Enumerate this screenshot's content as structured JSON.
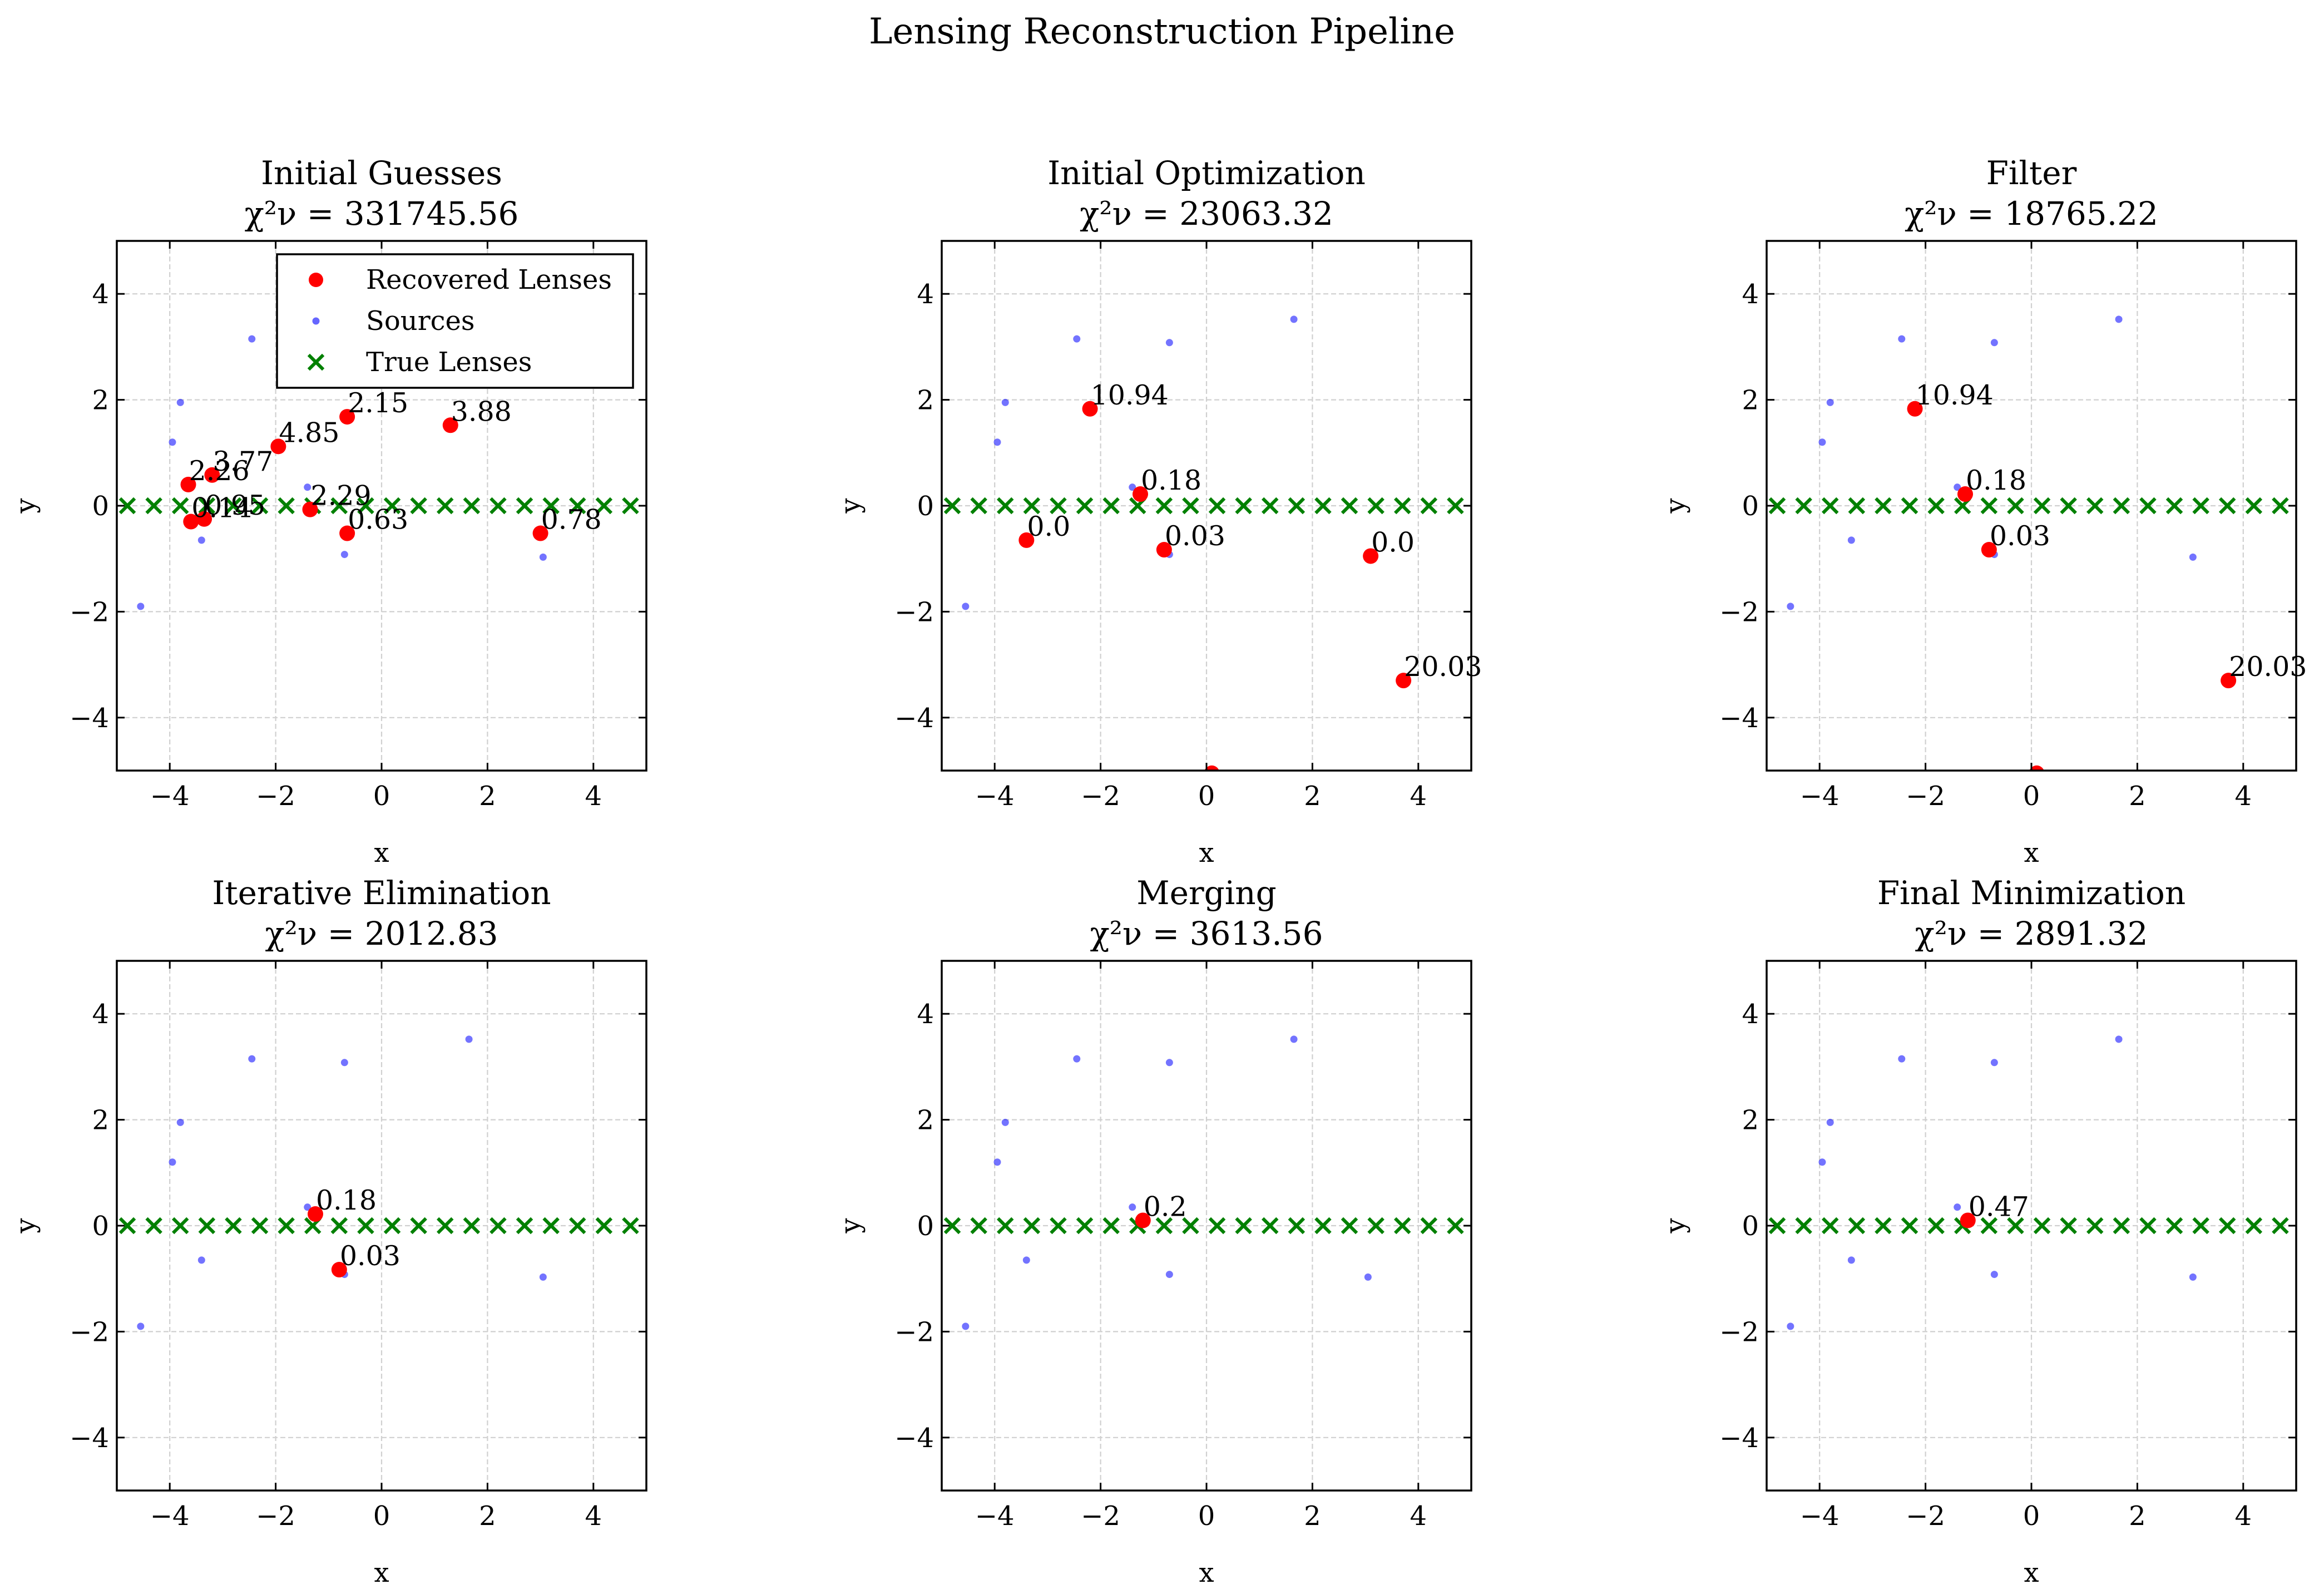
{
  "figure": {
    "title": "Lensing Reconstruction Pipeline"
  },
  "legend": {
    "items": [
      {
        "label": "Recovered Lenses",
        "marker": "circle",
        "color": "#ff0000"
      },
      {
        "label": "Sources",
        "marker": "small-circle",
        "color": "#0000ff"
      },
      {
        "label": "True Lenses",
        "marker": "x",
        "color": "#008000"
      }
    ]
  },
  "chart_data": [
    {
      "type": "scatter",
      "title": "Initial Guesses",
      "chi2_label": "χ²ν = 331745.56",
      "xlabel": "x",
      "ylabel": "y",
      "xlim": [
        -5,
        5
      ],
      "ylim": [
        -5,
        5
      ],
      "xticks": [
        -4,
        -2,
        0,
        2,
        4
      ],
      "yticks": [
        -4,
        -2,
        0,
        2,
        4
      ],
      "grid": true,
      "legend_position": "top-right",
      "series": [
        {
          "name": "Sources",
          "points": [
            [
              -4.55,
              -1.9
            ],
            [
              -3.95,
              1.2
            ],
            [
              -3.8,
              1.95
            ],
            [
              -3.4,
              -0.65
            ],
            [
              -2.45,
              3.15
            ],
            [
              -1.4,
              0.35
            ],
            [
              -0.7,
              -0.92
            ],
            [
              -0.7,
              3.08
            ],
            [
              1.65,
              3.52
            ],
            [
              3.05,
              -0.97
            ]
          ]
        },
        {
          "name": "True Lenses",
          "points": [
            [
              -4.8,
              0
            ],
            [
              -4.3,
              0
            ],
            [
              -3.8,
              0
            ],
            [
              -3.3,
              0
            ],
            [
              -2.8,
              0
            ],
            [
              -2.3,
              0
            ],
            [
              -1.8,
              0
            ],
            [
              -1.3,
              0
            ],
            [
              -0.8,
              0
            ],
            [
              -0.3,
              0
            ],
            [
              0.2,
              0
            ],
            [
              0.7,
              0
            ],
            [
              1.2,
              0
            ],
            [
              1.7,
              0
            ],
            [
              2.2,
              0
            ],
            [
              2.7,
              0
            ],
            [
              3.2,
              0
            ],
            [
              3.7,
              0
            ],
            [
              4.2,
              0
            ],
            [
              4.7,
              0
            ]
          ]
        },
        {
          "name": "Recovered Lenses",
          "points": [
            [
              -3.65,
              0.4,
              "2.26"
            ],
            [
              -3.2,
              0.58,
              "3.77"
            ],
            [
              -3.6,
              -0.3,
              "0.14"
            ],
            [
              -3.35,
              -0.25,
              "0.95"
            ],
            [
              -1.95,
              1.12,
              "4.85"
            ],
            [
              -1.35,
              -0.07,
              "2.29"
            ],
            [
              -0.65,
              1.68,
              "2.15"
            ],
            [
              -0.65,
              -0.52,
              "0.63"
            ],
            [
              1.3,
              1.52,
              "3.88"
            ],
            [
              3.0,
              -0.52,
              "0.78"
            ]
          ]
        }
      ]
    },
    {
      "type": "scatter",
      "title": "Initial Optimization",
      "chi2_label": "χ²ν = 23063.32",
      "xlabel": "x",
      "ylabel": "y",
      "xlim": [
        -5,
        5
      ],
      "ylim": [
        -5,
        5
      ],
      "xticks": [
        -4,
        -2,
        0,
        2,
        4
      ],
      "yticks": [
        -4,
        -2,
        0,
        2,
        4
      ],
      "grid": true,
      "series": [
        {
          "name": "Sources",
          "points": [
            [
              -4.55,
              -1.9
            ],
            [
              -3.95,
              1.2
            ],
            [
              -3.8,
              1.95
            ],
            [
              -3.4,
              -0.65
            ],
            [
              -2.45,
              3.15
            ],
            [
              -1.4,
              0.35
            ],
            [
              -0.7,
              -0.92
            ],
            [
              -0.7,
              3.08
            ],
            [
              1.65,
              3.52
            ],
            [
              3.05,
              -0.97
            ]
          ]
        },
        {
          "name": "True Lenses",
          "points": [
            [
              -4.8,
              0
            ],
            [
              -4.3,
              0
            ],
            [
              -3.8,
              0
            ],
            [
              -3.3,
              0
            ],
            [
              -2.8,
              0
            ],
            [
              -2.3,
              0
            ],
            [
              -1.8,
              0
            ],
            [
              -1.3,
              0
            ],
            [
              -0.8,
              0
            ],
            [
              -0.3,
              0
            ],
            [
              0.2,
              0
            ],
            [
              0.7,
              0
            ],
            [
              1.2,
              0
            ],
            [
              1.7,
              0
            ],
            [
              2.2,
              0
            ],
            [
              2.7,
              0
            ],
            [
              3.2,
              0
            ],
            [
              3.7,
              0
            ],
            [
              4.2,
              0
            ],
            [
              4.7,
              0
            ]
          ]
        },
        {
          "name": "Recovered Lenses",
          "points": [
            [
              -3.4,
              -0.65,
              "0.0"
            ],
            [
              -2.2,
              1.83,
              "10.94"
            ],
            [
              -1.25,
              0.22,
              "0.18"
            ],
            [
              -0.8,
              -0.83,
              "0.03"
            ],
            [
              3.1,
              -0.95,
              "0.0"
            ],
            [
              3.72,
              -3.3,
              "20.03"
            ],
            [
              0.1,
              -5.05,
              ""
            ]
          ]
        }
      ]
    },
    {
      "type": "scatter",
      "title": "Filter",
      "chi2_label": "χ²ν = 18765.22",
      "xlabel": "x",
      "ylabel": "y",
      "xlim": [
        -5,
        5
      ],
      "ylim": [
        -5,
        5
      ],
      "xticks": [
        -4,
        -2,
        0,
        2,
        4
      ],
      "yticks": [
        -4,
        -2,
        0,
        2,
        4
      ],
      "grid": true,
      "series": [
        {
          "name": "Sources",
          "points": [
            [
              -4.55,
              -1.9
            ],
            [
              -3.95,
              1.2
            ],
            [
              -3.8,
              1.95
            ],
            [
              -3.4,
              -0.65
            ],
            [
              -2.45,
              3.15
            ],
            [
              -1.4,
              0.35
            ],
            [
              -0.7,
              -0.92
            ],
            [
              -0.7,
              3.08
            ],
            [
              1.65,
              3.52
            ],
            [
              3.05,
              -0.97
            ]
          ]
        },
        {
          "name": "True Lenses",
          "points": [
            [
              -4.8,
              0
            ],
            [
              -4.3,
              0
            ],
            [
              -3.8,
              0
            ],
            [
              -3.3,
              0
            ],
            [
              -2.8,
              0
            ],
            [
              -2.3,
              0
            ],
            [
              -1.8,
              0
            ],
            [
              -1.3,
              0
            ],
            [
              -0.8,
              0
            ],
            [
              -0.3,
              0
            ],
            [
              0.2,
              0
            ],
            [
              0.7,
              0
            ],
            [
              1.2,
              0
            ],
            [
              1.7,
              0
            ],
            [
              2.2,
              0
            ],
            [
              2.7,
              0
            ],
            [
              3.2,
              0
            ],
            [
              3.7,
              0
            ],
            [
              4.2,
              0
            ],
            [
              4.7,
              0
            ]
          ]
        },
        {
          "name": "Recovered Lenses",
          "points": [
            [
              -2.2,
              1.83,
              "10.94"
            ],
            [
              -1.25,
              0.22,
              "0.18"
            ],
            [
              -0.8,
              -0.83,
              "0.03"
            ],
            [
              3.72,
              -3.3,
              "20.03"
            ],
            [
              0.1,
              -5.05,
              ""
            ]
          ]
        }
      ]
    },
    {
      "type": "scatter",
      "title": "Iterative Elimination",
      "chi2_label": "χ²ν = 2012.83",
      "xlabel": "x",
      "ylabel": "y",
      "xlim": [
        -5,
        5
      ],
      "ylim": [
        -5,
        5
      ],
      "xticks": [
        -4,
        -2,
        0,
        2,
        4
      ],
      "yticks": [
        -4,
        -2,
        0,
        2,
        4
      ],
      "grid": true,
      "series": [
        {
          "name": "Sources",
          "points": [
            [
              -4.55,
              -1.9
            ],
            [
              -3.95,
              1.2
            ],
            [
              -3.8,
              1.95
            ],
            [
              -3.4,
              -0.65
            ],
            [
              -2.45,
              3.15
            ],
            [
              -1.4,
              0.35
            ],
            [
              -0.7,
              -0.92
            ],
            [
              -0.7,
              3.08
            ],
            [
              1.65,
              3.52
            ],
            [
              3.05,
              -0.97
            ]
          ]
        },
        {
          "name": "True Lenses",
          "points": [
            [
              -4.8,
              0
            ],
            [
              -4.3,
              0
            ],
            [
              -3.8,
              0
            ],
            [
              -3.3,
              0
            ],
            [
              -2.8,
              0
            ],
            [
              -2.3,
              0
            ],
            [
              -1.8,
              0
            ],
            [
              -1.3,
              0
            ],
            [
              -0.8,
              0
            ],
            [
              -0.3,
              0
            ],
            [
              0.2,
              0
            ],
            [
              0.7,
              0
            ],
            [
              1.2,
              0
            ],
            [
              1.7,
              0
            ],
            [
              2.2,
              0
            ],
            [
              2.7,
              0
            ],
            [
              3.2,
              0
            ],
            [
              3.7,
              0
            ],
            [
              4.2,
              0
            ],
            [
              4.7,
              0
            ]
          ]
        },
        {
          "name": "Recovered Lenses",
          "points": [
            [
              -1.25,
              0.22,
              "0.18"
            ],
            [
              -0.8,
              -0.83,
              "0.03"
            ]
          ]
        }
      ]
    },
    {
      "type": "scatter",
      "title": "Merging",
      "chi2_label": "χ²ν = 3613.56",
      "xlabel": "x",
      "ylabel": "y",
      "xlim": [
        -5,
        5
      ],
      "ylim": [
        -5,
        5
      ],
      "xticks": [
        -4,
        -2,
        0,
        2,
        4
      ],
      "yticks": [
        -4,
        -2,
        0,
        2,
        4
      ],
      "grid": true,
      "series": [
        {
          "name": "Sources",
          "points": [
            [
              -4.55,
              -1.9
            ],
            [
              -3.95,
              1.2
            ],
            [
              -3.8,
              1.95
            ],
            [
              -3.4,
              -0.65
            ],
            [
              -2.45,
              3.15
            ],
            [
              -1.4,
              0.35
            ],
            [
              -0.7,
              -0.92
            ],
            [
              -0.7,
              3.08
            ],
            [
              1.65,
              3.52
            ],
            [
              3.05,
              -0.97
            ]
          ]
        },
        {
          "name": "True Lenses",
          "points": [
            [
              -4.8,
              0
            ],
            [
              -4.3,
              0
            ],
            [
              -3.8,
              0
            ],
            [
              -3.3,
              0
            ],
            [
              -2.8,
              0
            ],
            [
              -2.3,
              0
            ],
            [
              -1.8,
              0
            ],
            [
              -1.3,
              0
            ],
            [
              -0.8,
              0
            ],
            [
              -0.3,
              0
            ],
            [
              0.2,
              0
            ],
            [
              0.7,
              0
            ],
            [
              1.2,
              0
            ],
            [
              1.7,
              0
            ],
            [
              2.2,
              0
            ],
            [
              2.7,
              0
            ],
            [
              3.2,
              0
            ],
            [
              3.7,
              0
            ],
            [
              4.2,
              0
            ],
            [
              4.7,
              0
            ]
          ]
        },
        {
          "name": "Recovered Lenses",
          "points": [
            [
              -1.2,
              0.1,
              "0.2"
            ]
          ]
        }
      ]
    },
    {
      "type": "scatter",
      "title": "Final Minimization",
      "chi2_label": "χ²ν = 2891.32",
      "xlabel": "x",
      "ylabel": "y",
      "xlim": [
        -5,
        5
      ],
      "ylim": [
        -5,
        5
      ],
      "xticks": [
        -4,
        -2,
        0,
        2,
        4
      ],
      "yticks": [
        -4,
        -2,
        0,
        2,
        4
      ],
      "grid": true,
      "series": [
        {
          "name": "Sources",
          "points": [
            [
              -4.55,
              -1.9
            ],
            [
              -3.95,
              1.2
            ],
            [
              -3.8,
              1.95
            ],
            [
              -3.4,
              -0.65
            ],
            [
              -2.45,
              3.15
            ],
            [
              -1.4,
              0.35
            ],
            [
              -0.7,
              -0.92
            ],
            [
              -0.7,
              3.08
            ],
            [
              1.65,
              3.52
            ],
            [
              3.05,
              -0.97
            ]
          ]
        },
        {
          "name": "True Lenses",
          "points": [
            [
              -4.8,
              0
            ],
            [
              -4.3,
              0
            ],
            [
              -3.8,
              0
            ],
            [
              -3.3,
              0
            ],
            [
              -2.8,
              0
            ],
            [
              -2.3,
              0
            ],
            [
              -1.8,
              0
            ],
            [
              -1.3,
              0
            ],
            [
              -0.8,
              0
            ],
            [
              -0.3,
              0
            ],
            [
              0.2,
              0
            ],
            [
              0.7,
              0
            ],
            [
              1.2,
              0
            ],
            [
              1.7,
              0
            ],
            [
              2.2,
              0
            ],
            [
              2.7,
              0
            ],
            [
              3.2,
              0
            ],
            [
              3.7,
              0
            ],
            [
              4.2,
              0
            ],
            [
              4.7,
              0
            ]
          ]
        },
        {
          "name": "Recovered Lenses",
          "points": [
            [
              -1.2,
              0.1,
              "0.47"
            ]
          ]
        }
      ]
    }
  ]
}
